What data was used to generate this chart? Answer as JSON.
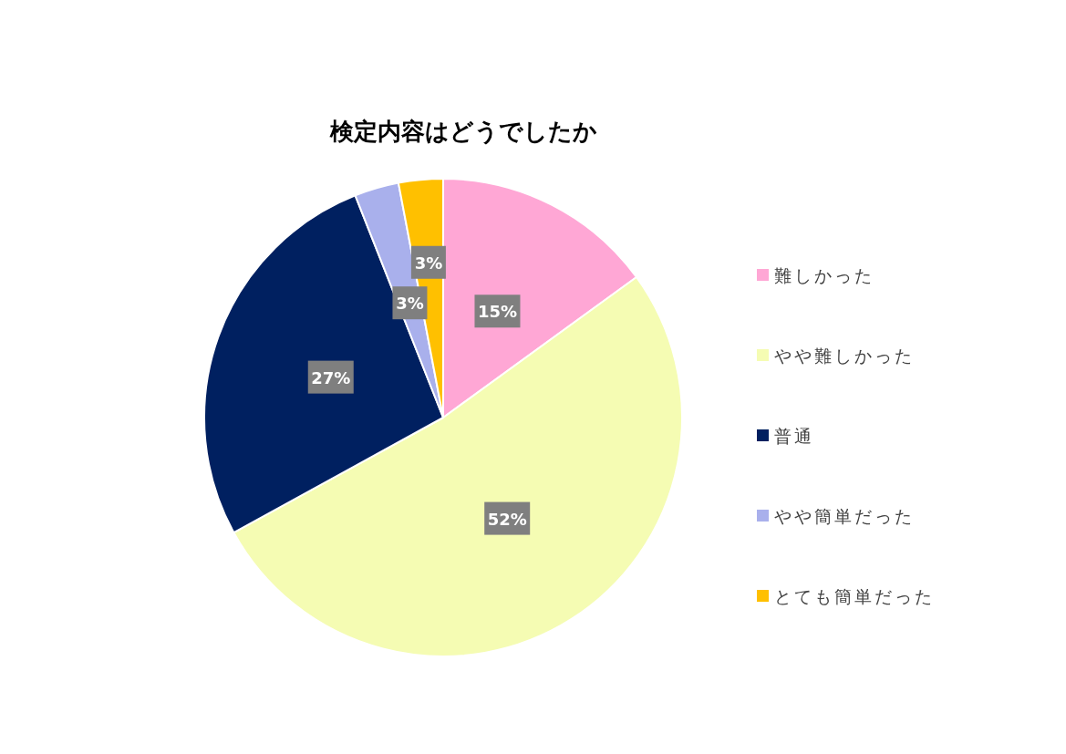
{
  "chart_data": {
    "type": "pie",
    "title": "検定内容はどうでしたか",
    "categories": [
      "難しかった",
      "やや難しかった",
      "普通",
      "やや簡単だった",
      "とても簡単だった"
    ],
    "values": [
      15,
      52,
      27,
      3,
      3
    ],
    "colors": [
      "#ffa7d5",
      "#f5fcb3",
      "#002060",
      "#a9b0ec",
      "#ffc000"
    ],
    "value_labels": [
      "15%",
      "52%",
      "27%",
      "3%",
      "3%"
    ],
    "legend": "right"
  }
}
